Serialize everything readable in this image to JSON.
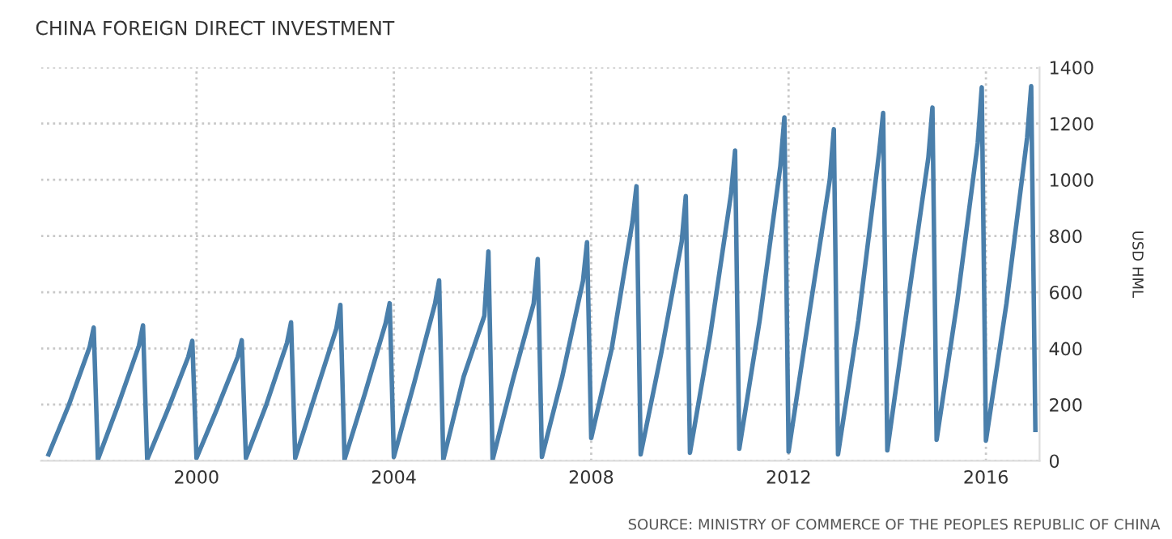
{
  "chart_data": {
    "type": "line",
    "title": "CHINA FOREIGN DIRECT INVESTMENT",
    "ylabel": "USD HML",
    "annotations": [
      "SOURCE: MINISTRY OF COMMERCE OF THE PEOPLES REPUBLIC OF CHINA"
    ],
    "x": [
      "1997-01",
      "1997-06",
      "1997-11",
      "1997-12",
      "1998-01",
      "1998-06",
      "1998-11",
      "1998-12",
      "1999-01",
      "1999-06",
      "1999-11",
      "1999-12",
      "2000-01",
      "2000-06",
      "2000-11",
      "2000-12",
      "2001-01",
      "2001-06",
      "2001-11",
      "2001-12",
      "2002-01",
      "2002-06",
      "2002-11",
      "2002-12",
      "2003-01",
      "2003-06",
      "2003-11",
      "2003-12",
      "2004-01",
      "2004-06",
      "2004-11",
      "2004-12",
      "2005-01",
      "2005-06",
      "2005-11",
      "2005-12",
      "2006-01",
      "2006-06",
      "2006-11",
      "2006-12",
      "2007-01",
      "2007-06",
      "2007-11",
      "2007-12",
      "2008-01",
      "2008-06",
      "2008-11",
      "2008-12",
      "2009-01",
      "2009-06",
      "2009-11",
      "2009-12",
      "2010-01",
      "2010-06",
      "2010-11",
      "2010-12",
      "2011-01",
      "2011-06",
      "2011-11",
      "2011-12",
      "2012-01",
      "2012-06",
      "2012-11",
      "2012-12",
      "2013-01",
      "2013-06",
      "2013-11",
      "2013-12",
      "2014-01",
      "2014-06",
      "2014-11",
      "2014-12",
      "2015-01",
      "2015-06",
      "2015-11",
      "2015-12",
      "2016-01",
      "2016-06",
      "2016-11",
      "2016-12",
      "2017-01"
    ],
    "series": [
      {
        "color": "#4a7fab",
        "values": [
          23,
          200,
          405,
          474,
          5,
          200,
          410,
          482,
          5,
          180,
          370,
          427,
          10,
          185,
          370,
          429,
          10,
          200,
          420,
          493,
          10,
          240,
          470,
          555,
          5,
          240,
          490,
          561,
          14,
          280,
          560,
          642,
          4,
          300,
          516,
          745,
          4,
          290,
          560,
          718,
          14,
          300,
          640,
          778,
          81,
          400,
          850,
          977,
          23,
          380,
          780,
          942,
          29,
          450,
          950,
          1104,
          43,
          500,
          1048,
          1222,
          33,
          520,
          1000,
          1180,
          23,
          500,
          1097,
          1238,
          37,
          560,
          1080,
          1257,
          75,
          560,
          1130,
          1329,
          72,
          560,
          1150,
          1333,
          110
        ]
      }
    ],
    "xlim": [
      "1996-11-06",
      "2017-02-01"
    ],
    "xticks": [
      {
        "value": "2000",
        "label": "2000"
      },
      {
        "value": "2004",
        "label": "2004"
      },
      {
        "value": "2008",
        "label": "2008"
      },
      {
        "value": "2012",
        "label": "2012"
      },
      {
        "value": "2016",
        "label": "2016"
      }
    ],
    "ylim": [
      0,
      1400
    ],
    "yticks": [
      0,
      200,
      400,
      600,
      800,
      1000,
      1200,
      1400
    ],
    "grid": true,
    "legend": false,
    "marker": "none",
    "line_style": "solid"
  }
}
